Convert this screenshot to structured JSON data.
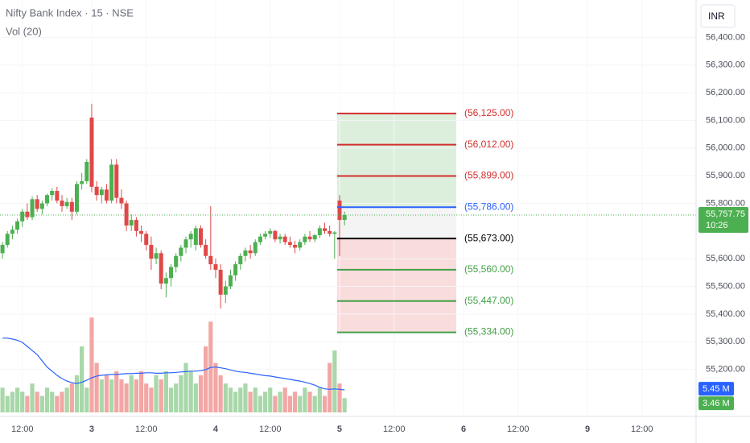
{
  "chart_data": {
    "type": "candlestick",
    "title": "Nifty Bank Index · 15 · NSE",
    "subtitle": "Vol (20)",
    "currency": "INR",
    "up_color": "#4caf50",
    "down_color": "#e04848",
    "volume_up_color": "#a8d8a9",
    "volume_down_color": "#f2a7a5",
    "ma_color": "#2962ff",
    "ylim": [
      55030,
      56535
    ],
    "yticks": [
      {
        "value": 56400,
        "label": "56,400.00"
      },
      {
        "value": 56300,
        "label": "56,300.00"
      },
      {
        "value": 56200,
        "label": "56,200.00"
      },
      {
        "value": 56100,
        "label": "56,100.00"
      },
      {
        "value": 56000,
        "label": "56,000.00"
      },
      {
        "value": 55900,
        "label": "55,900.00"
      },
      {
        "value": 55800,
        "label": "55,800.00"
      },
      {
        "value": 55600,
        "label": "55,600.00"
      },
      {
        "value": 55500,
        "label": "55,500.00"
      },
      {
        "value": 55400,
        "label": "55,400.00"
      },
      {
        "value": 55300,
        "label": "55,300.00"
      },
      {
        "value": 55200,
        "label": "55,200.00"
      }
    ],
    "xlim": [
      -0.5,
      139.1
    ],
    "xticks": [
      {
        "value": 4,
        "label": "12:00"
      },
      {
        "value": 18,
        "label": "3"
      },
      {
        "value": 29,
        "label": "12:00"
      },
      {
        "value": 43,
        "label": "4"
      },
      {
        "value": 54,
        "label": "12:00"
      },
      {
        "value": 68,
        "label": "5"
      },
      {
        "value": 79,
        "label": "12:00"
      },
      {
        "value": 93,
        "label": "6"
      },
      {
        "value": 104,
        "label": "12:00"
      },
      {
        "value": 118,
        "label": "9"
      },
      {
        "value": 129,
        "label": "12:00"
      }
    ],
    "open": [
      55620,
      55650,
      55690,
      55705,
      55735,
      55770,
      55750,
      55815,
      55780,
      55800,
      55830,
      55845,
      55810,
      55790,
      55805,
      55770,
      55870,
      55880,
      56110,
      55860,
      55830,
      55850,
      55810,
      55940,
      55820,
      55800,
      55720,
      55740,
      55700,
      55690,
      55650,
      55600,
      55620,
      55510,
      55530,
      55570,
      55610,
      55640,
      55670,
      55650,
      55710,
      55650,
      55610,
      55580,
      55560,
      55470,
      55500,
      55540,
      55580,
      55610,
      55630,
      55620,
      55660,
      55680,
      55690,
      55700,
      55670,
      55680,
      55660,
      55650,
      55640,
      55660,
      55680,
      55670,
      55685,
      55710,
      55700,
      55690,
      55810,
      55740
    ],
    "high": [
      55660,
      55700,
      55720,
      55745,
      55780,
      55800,
      55825,
      55830,
      55810,
      55835,
      55855,
      55860,
      55830,
      55820,
      55820,
      55880,
      55910,
      55960,
      56160,
      55880,
      55860,
      55870,
      55960,
      55960,
      55850,
      55810,
      55760,
      55750,
      55720,
      55700,
      55680,
      55640,
      55630,
      55550,
      55580,
      55620,
      55650,
      55680,
      55700,
      55720,
      55720,
      55670,
      55790,
      55600,
      55580,
      55520,
      55560,
      55590,
      55620,
      55640,
      55650,
      55670,
      55690,
      55700,
      55710,
      55705,
      55690,
      55690,
      55680,
      55665,
      55670,
      55690,
      55700,
      55690,
      55720,
      55730,
      55720,
      55700,
      55830,
      55770
    ],
    "low": [
      55600,
      55640,
      55670,
      55690,
      55715,
      55740,
      55740,
      55770,
      55760,
      55790,
      55810,
      55800,
      55770,
      55780,
      55740,
      55760,
      55850,
      55870,
      55840,
      55810,
      55800,
      55800,
      55800,
      55800,
      55780,
      55700,
      55700,
      55680,
      55660,
      55630,
      55560,
      55580,
      55490,
      55460,
      55500,
      55550,
      55590,
      55620,
      55640,
      55630,
      55640,
      55600,
      55560,
      55530,
      55420,
      55440,
      55490,
      55520,
      55560,
      55590,
      55600,
      55610,
      55650,
      55670,
      55675,
      55660,
      55655,
      55650,
      55640,
      55620,
      55630,
      55650,
      55660,
      55660,
      55675,
      55690,
      55680,
      55600,
      55610,
      55720
    ],
    "close": [
      55650,
      55690,
      55705,
      55735,
      55770,
      55750,
      55815,
      55780,
      55800,
      55830,
      55845,
      55810,
      55790,
      55805,
      55770,
      55870,
      55880,
      55950,
      55860,
      55830,
      55850,
      55810,
      55940,
      55820,
      55800,
      55720,
      55740,
      55700,
      55690,
      55650,
      55600,
      55620,
      55510,
      55530,
      55570,
      55610,
      55640,
      55670,
      55690,
      55710,
      55650,
      55610,
      55580,
      55560,
      55470,
      55500,
      55540,
      55580,
      55610,
      55630,
      55620,
      55660,
      55680,
      55690,
      55700,
      55670,
      55680,
      55660,
      55650,
      55640,
      55660,
      55680,
      55670,
      55685,
      55710,
      55700,
      55690,
      55695,
      55740,
      55757.75
    ],
    "last_label": "55,757.75",
    "countdown": "10:26",
    "volume_ylim": [
      0,
      25
    ],
    "volume": [
      6,
      4,
      5,
      6,
      5,
      4,
      7,
      5,
      4,
      6,
      5,
      4,
      5,
      6,
      7,
      9,
      16,
      6,
      23,
      12,
      8,
      9,
      8,
      10,
      8,
      7,
      9,
      8,
      10,
      7,
      6,
      9,
      8,
      10,
      6,
      7,
      9,
      12,
      10,
      7,
      9,
      16,
      22,
      12,
      9,
      7,
      6,
      5,
      6,
      7,
      5,
      6,
      4,
      5,
      6,
      4,
      5,
      6,
      4,
      5,
      4,
      6,
      5,
      4,
      6,
      4,
      12,
      15,
      7,
      3.46
    ],
    "volume_label": "3.46 M",
    "volume_ma": [
      18,
      18,
      17.8,
      17.5,
      17,
      16,
      15,
      14,
      12.5,
      11,
      10,
      9,
      8.2,
      7.6,
      7.2,
      7,
      7.3,
      7.8,
      8.4,
      8.8,
      9,
      9.1,
      9.2,
      9.2,
      9.3,
      9.4,
      9.4,
      9.5,
      9.5,
      9.6,
      9.6,
      9.5,
      9.5,
      9.6,
      9.6,
      9.7,
      9.8,
      9.9,
      10,
      10,
      10.1,
      10.4,
      10.9,
      11,
      10.8,
      10.6,
      10.3,
      10,
      9.8,
      9.7,
      9.5,
      9.3,
      9.1,
      8.9,
      8.8,
      8.6,
      8.4,
      8.2,
      8.0,
      7.8,
      7.6,
      7.3,
      7.0,
      6.6,
      6.1,
      5.7,
      5.6,
      5.7,
      5.6,
      5.45
    ],
    "volume_ma_label": "5.45 M",
    "levels": [
      {
        "value": 56125,
        "label": "(56,125.00)",
        "color": "#d32f2f"
      },
      {
        "value": 56012,
        "label": "(56,012.00)",
        "color": "#d32f2f"
      },
      {
        "value": 55899,
        "label": "(55,899.00)",
        "color": "#d32f2f"
      },
      {
        "value": 55786,
        "label": "(55,786.00)",
        "color": "#2962ff"
      },
      {
        "value": 55673,
        "label": "(55,673.00)",
        "color": "#000000"
      },
      {
        "value": 55560,
        "label": "(55,560.00)",
        "color": "#43a047"
      },
      {
        "value": 55447,
        "label": "(55,447.00)",
        "color": "#43a047"
      },
      {
        "value": 55334,
        "label": "(55,334.00)",
        "color": "#43a047"
      }
    ],
    "zone_colors": [
      "#dcefdc",
      "#f4f4f4",
      "#f9dcdc"
    ]
  }
}
